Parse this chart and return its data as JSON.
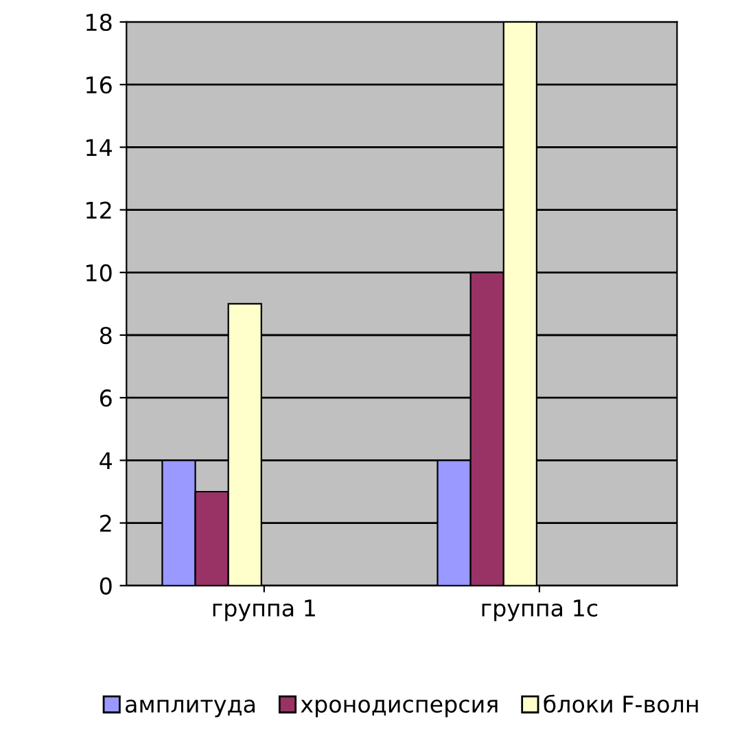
{
  "chart_data": {
    "type": "bar",
    "categories": [
      "группа 1",
      "группа 1с"
    ],
    "series": [
      {
        "name": "амплитуда",
        "color": "#9999ff",
        "values": [
          4,
          4
        ]
      },
      {
        "name": "хронодисперсия",
        "color": "#993366",
        "values": [
          3,
          10
        ]
      },
      {
        "name": "блоки F-волн",
        "color": "#ffffcc",
        "values": [
          9,
          18
        ]
      }
    ],
    "ylim": [
      0,
      18
    ],
    "yticks": [
      0,
      2,
      4,
      6,
      8,
      10,
      12,
      14,
      16,
      18
    ],
    "grid": "y",
    "legend": "bottom"
  }
}
